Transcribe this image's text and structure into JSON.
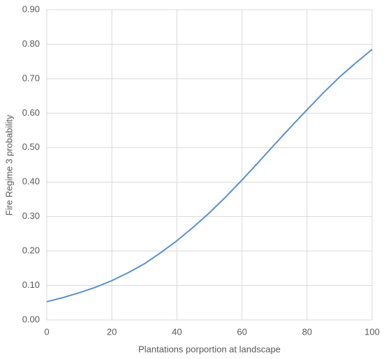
{
  "chart_data": {
    "type": "line",
    "x_label": "Plantations porportion at landscape",
    "y_label": "Fire Regime 3 probability",
    "x": [
      0,
      5,
      10,
      15,
      20,
      25,
      30,
      35,
      40,
      45,
      50,
      55,
      60,
      65,
      70,
      75,
      80,
      85,
      90,
      95,
      100
    ],
    "values": [
      0.053,
      0.065,
      0.079,
      0.095,
      0.114,
      0.137,
      0.163,
      0.195,
      0.23,
      0.269,
      0.311,
      0.357,
      0.406,
      0.457,
      0.509,
      0.56,
      0.61,
      0.659,
      0.705,
      0.746,
      0.785
    ],
    "color": "#5b8fcf",
    "xlim": [
      0,
      100
    ],
    "xticks": [
      0,
      20,
      40,
      60,
      80,
      100
    ],
    "ylim": [
      0,
      0.9
    ],
    "yticks": [
      {
        "value": 0,
        "label": "0.00"
      },
      {
        "value": 0.1,
        "label": "0.10"
      },
      {
        "value": 0.2,
        "label": "0.20"
      },
      {
        "value": 0.3,
        "label": "0.30"
      },
      {
        "value": 0.4,
        "label": "0.40"
      },
      {
        "value": 0.5,
        "label": "0.50"
      },
      {
        "value": 0.6,
        "label": "0.60"
      },
      {
        "value": 0.7,
        "label": "0.70"
      },
      {
        "value": 0.8,
        "label": "0.80"
      },
      {
        "value": 0.9,
        "label": "0.90"
      }
    ],
    "grid": true
  }
}
